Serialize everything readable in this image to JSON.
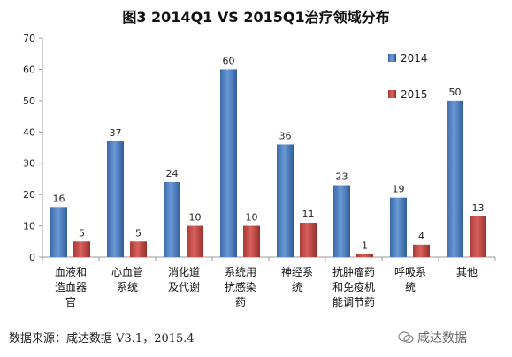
{
  "title": "图3 2014Q1 VS 2015Q1治疗领域分布",
  "source": "数据来源：咸达数据 V3.1，2015.4",
  "watermark": "咸达数据",
  "chart_data": {
    "type": "bar",
    "title": "图3 2014Q1 VS 2015Q1治疗领域分布",
    "categories": [
      [
        "血液和",
        "造血器",
        "官"
      ],
      [
        "心血管",
        "系统"
      ],
      [
        "消化道",
        "及代谢"
      ],
      [
        "系统用",
        "抗感染",
        "药"
      ],
      [
        "神经系",
        "统"
      ],
      [
        "抗肿瘤药",
        "和免疫机",
        "能调节药"
      ],
      [
        "呼吸系",
        "统"
      ],
      [
        "其他"
      ]
    ],
    "series": [
      {
        "name": "2014",
        "values": [
          16,
          37,
          24,
          60,
          36,
          23,
          19,
          50
        ],
        "color": "#4a7ebb"
      },
      {
        "name": "2015",
        "values": [
          5,
          5,
          10,
          10,
          11,
          1,
          4,
          13
        ],
        "color": "#c0504d"
      }
    ],
    "ylim": [
      0,
      70
    ],
    "yticks": [
      0,
      10,
      20,
      30,
      40,
      50,
      60,
      70
    ],
    "grid": false,
    "legend_position": "right"
  }
}
